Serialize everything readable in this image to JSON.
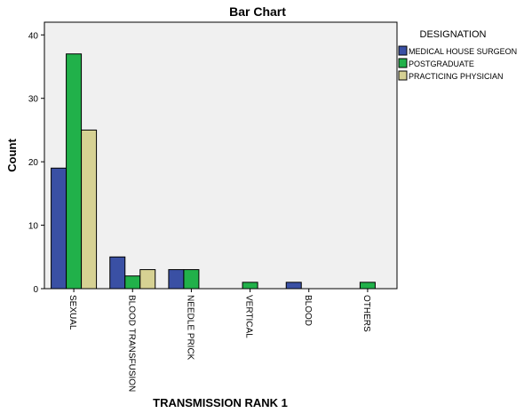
{
  "chart_data": {
    "type": "bar",
    "title": "Bar Chart",
    "xlabel": "TRANSMISSION RANK 1",
    "ylabel": "Count",
    "categories": [
      "SEXUAL",
      "BLOOD TRANSFUSION",
      "NEEDLE PRICK",
      "VERTICAL",
      "BLOOD",
      "OTHERS"
    ],
    "series": [
      {
        "name": "MEDICAL HOUSE SURGEON",
        "color": "#3a50a4",
        "values": [
          19,
          5,
          3,
          0,
          1,
          0
        ]
      },
      {
        "name": "POSTGRADUATE",
        "color": "#21b14a",
        "values": [
          37,
          2,
          3,
          1,
          0,
          1
        ]
      },
      {
        "name": "PRACTICING PHYSICIAN",
        "color": "#d6d193",
        "values": [
          25,
          3,
          0,
          0,
          0,
          0
        ]
      }
    ],
    "ylim": [
      0,
      42
    ],
    "yticks": [
      0,
      10,
      20,
      30,
      40
    ],
    "legend": {
      "title": "DESIGNATION",
      "position": "right"
    },
    "grid": false,
    "plot_background": "#f0f0f0"
  }
}
